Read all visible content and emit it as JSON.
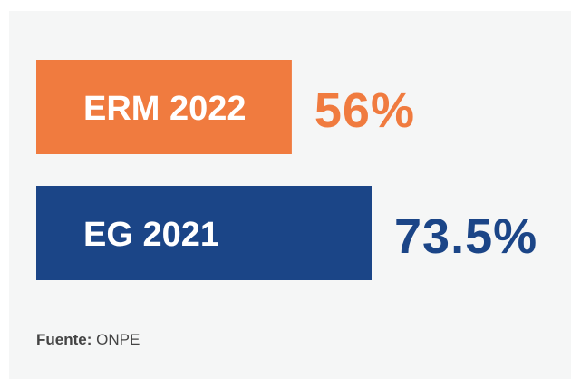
{
  "chart_data": {
    "type": "bar",
    "orientation": "horizontal",
    "categories": [
      "ERM 2022",
      "EG 2021"
    ],
    "values": [
      56,
      73.5
    ],
    "value_labels": [
      "56%",
      "73.5%"
    ],
    "colors": [
      "#f07b3f",
      "#1b4587"
    ],
    "source": {
      "label": "Fuente:",
      "text": "ONPE"
    }
  }
}
